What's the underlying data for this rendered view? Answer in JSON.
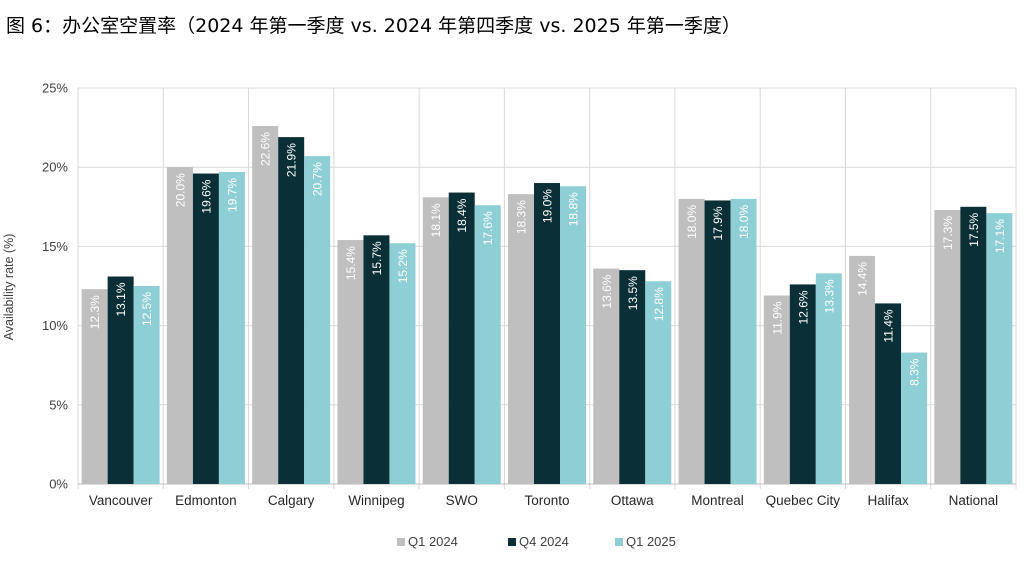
{
  "chart_data": {
    "type": "bar",
    "title": "图 6：办公室空置率（2024 年第一季度 vs. 2024 年第四季度 vs. 2025 年第一季度）",
    "xlabel": "",
    "ylabel": "Availability rate (%)",
    "ylim": [
      0,
      25
    ],
    "yticks": [
      "0%",
      "5%",
      "10%",
      "15%",
      "20%",
      "25%"
    ],
    "grid": true,
    "legend_position": "bottom-center",
    "categories": [
      "Vancouver",
      "Edmonton",
      "Calgary",
      "Winnipeg",
      "SWO",
      "Toronto",
      "Ottawa",
      "Montreal",
      "Quebec City",
      "Halifax",
      "National"
    ],
    "series": [
      {
        "name": "Q1 2024",
        "color": "#bfbfbf",
        "values": [
          12.3,
          20.0,
          22.6,
          15.4,
          18.1,
          18.3,
          13.6,
          18.0,
          11.9,
          14.4,
          17.3
        ],
        "labels": [
          "12.3%",
          "20.0%",
          "22.6%",
          "15.4%",
          "18.1%",
          "18.3%",
          "13.6%",
          "18.0%",
          "11.9%",
          "14.4%",
          "17.3%"
        ]
      },
      {
        "name": "Q4 2024",
        "color": "#0b2f36",
        "values": [
          13.1,
          19.6,
          21.9,
          15.7,
          18.4,
          19.0,
          13.5,
          17.9,
          12.6,
          11.4,
          17.5
        ],
        "labels": [
          "13.1%",
          "19.6%",
          "21.9%",
          "15.7%",
          "18.4%",
          "19.0%",
          "13.5%",
          "17.9%",
          "12.6%",
          "11.4%",
          "17.5%"
        ]
      },
      {
        "name": "Q1 2025",
        "color": "#8ecfd6",
        "values": [
          12.5,
          19.7,
          20.7,
          15.2,
          17.6,
          18.8,
          12.8,
          18.0,
          13.3,
          8.3,
          17.1
        ],
        "labels": [
          "12.5%",
          "19.7%",
          "20.7%",
          "15.2%",
          "17.6%",
          "18.8%",
          "12.8%",
          "18.0%",
          "13.3%",
          "8.3%",
          "17.1%"
        ]
      }
    ]
  }
}
